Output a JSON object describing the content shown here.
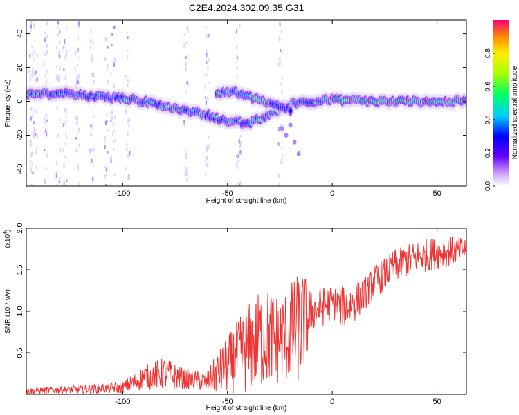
{
  "title": "C2E4.2024.302.09.35.G31",
  "chart_data": [
    {
      "type": "heatmap",
      "xlabel": "Height of straight line (km)",
      "ylabel": "Frequency (Hz)",
      "xlim": [
        -146,
        64
      ],
      "ylim": [
        -50,
        48
      ],
      "xticks": [
        -100,
        -50,
        0,
        50
      ],
      "yticks": [
        -40,
        -20,
        0,
        20,
        40
      ],
      "colorbar": {
        "label": "Normalized spectral amplitude",
        "range": [
          0,
          1
        ],
        "ticks": [
          "0.0",
          "0.2",
          "0.4",
          "0.6",
          "0.8"
        ]
      },
      "ridge": {
        "x": [
          -146,
          -130,
          -115,
          -100,
          -90,
          -80,
          -70,
          -60,
          -55,
          -50,
          -40,
          -30,
          -20,
          -10,
          0,
          20,
          40,
          64
        ],
        "freq": [
          4,
          5,
          3,
          2,
          0,
          -3,
          -5,
          -8,
          -10,
          -12,
          -13,
          -8,
          -1,
          0,
          1,
          0,
          0,
          0
        ]
      },
      "upper_branch": {
        "x": [
          -55,
          -50,
          -45,
          -40,
          -35,
          -30,
          -25,
          -20
        ],
        "freq": [
          5,
          6,
          5,
          3,
          1,
          -1,
          -3,
          -5
        ]
      }
    },
    {
      "type": "line",
      "xlabel": "Height of straight line (km)",
      "ylabel": "SNR (10 * v/v)",
      "multiplier_label": "(x10",
      "multiplier_exp": "4",
      "xlim": [
        -146,
        64
      ],
      "ylim": [
        0,
        20000
      ],
      "xticks": [
        -100,
        -50,
        0,
        50
      ],
      "yticks": [
        5000,
        10000,
        15000,
        20000
      ],
      "ytick_labels": [
        "0.5",
        "1.0",
        "1.5",
        "2.0"
      ],
      "series_color": "#ee3333",
      "envelope": {
        "x": [
          -146,
          -120,
          -100,
          -90,
          -80,
          -70,
          -60,
          -55,
          -50,
          -45,
          -40,
          -35,
          -30,
          -25,
          -20,
          -15,
          -12,
          -10,
          -5,
          0,
          5,
          10,
          15,
          20,
          30,
          40,
          50,
          64
        ],
        "mean": [
          400,
          600,
          800,
          2000,
          2500,
          1800,
          1500,
          2500,
          3500,
          4500,
          5500,
          6500,
          7000,
          6500,
          7500,
          8000,
          9000,
          10000,
          10500,
          11000,
          10500,
          11000,
          12000,
          13500,
          15500,
          16500,
          17000,
          17500
        ],
        "amp": [
          400,
          500,
          700,
          1500,
          2000,
          1200,
          1200,
          2500,
          3500,
          4500,
          5500,
          6000,
          6000,
          5500,
          6000,
          7000,
          5000,
          2500,
          2500,
          2000,
          2500,
          2500,
          2000,
          2000,
          2000,
          2000,
          2000,
          1500
        ]
      }
    }
  ]
}
